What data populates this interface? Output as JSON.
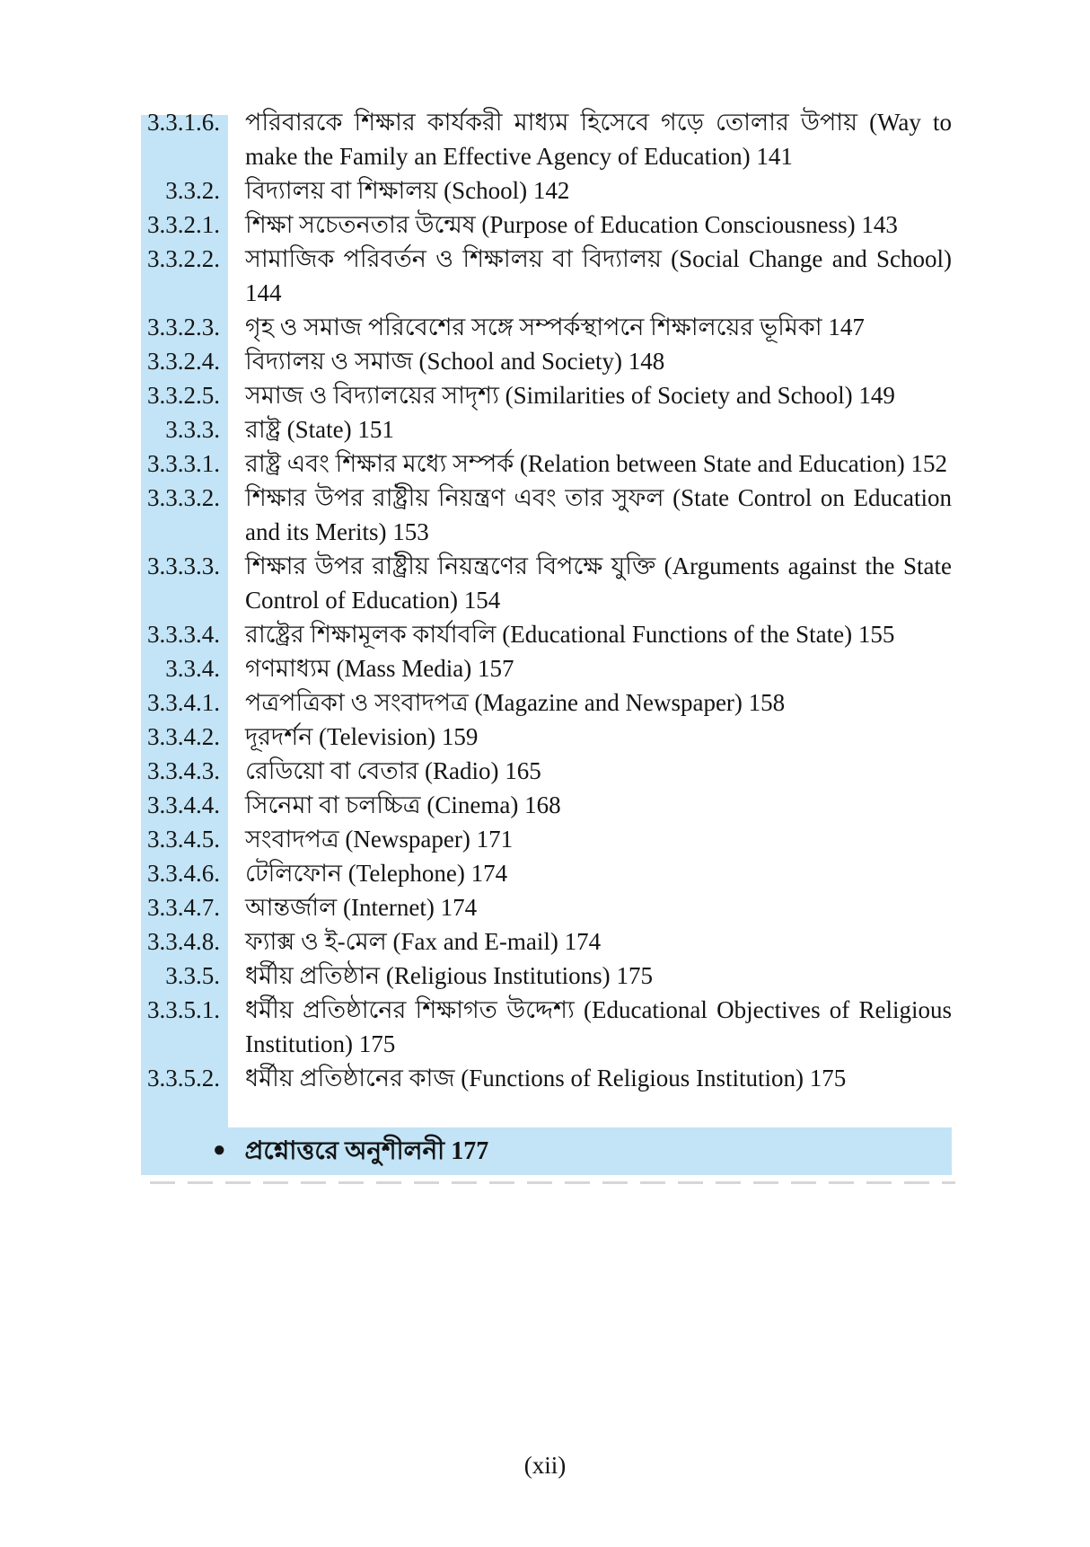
{
  "page": {
    "footer": "(xii)",
    "accent_color": "#c2e4f6",
    "text_color": "#141414"
  },
  "toc": {
    "entries": [
      {
        "number": "3.3.1.6.",
        "text": "পরিবারকে শিক্ষার কার্যকরী মাধ্যম হিসেবে গড়ে তোলার উপায় (Way to make the Family an Effective Agency of Education)",
        "page": "141"
      },
      {
        "number": "3.3.2.",
        "text": "বিদ্যালয় বা শিক্ষালয় (School)",
        "page": "142"
      },
      {
        "number": "3.3.2.1.",
        "text": "শিক্ষা সচেতনতার উন্মেষ (Purpose of Education Consciousness)",
        "page": "143"
      },
      {
        "number": "3.3.2.2.",
        "text": "সামাজিক পরিবর্তন ও শিক্ষালয় বা বিদ্যালয় (Social Change and School)",
        "page": "144"
      },
      {
        "number": "3.3.2.3.",
        "text": "গৃহ ও সমাজ পরিবেশের সঙ্গে সম্পর্কস্থাপনে শিক্ষালয়ের ভূমিকা",
        "page": "147"
      },
      {
        "number": "3.3.2.4.",
        "text": "বিদ্যালয় ও সমাজ (School and Society)",
        "page": "148"
      },
      {
        "number": "3.3.2.5.",
        "text": "সমাজ ও বিদ্যালয়ের সাদৃশ্য (Similarities of Society and School)",
        "page": "149"
      },
      {
        "number": "3.3.3.",
        "text": "রাষ্ট্র (State)",
        "page": "151"
      },
      {
        "number": "3.3.3.1.",
        "text": "রাষ্ট্র এবং শিক্ষার মধ্যে সম্পর্ক (Relation between State and Education)",
        "page": "152"
      },
      {
        "number": "3.3.3.2.",
        "text": "শিক্ষার উপর রাষ্ট্রীয় নিয়ন্ত্রণ এবং তার সুফল (State Control on Education and its Merits)",
        "page": "153"
      },
      {
        "number": "3.3.3.3.",
        "text": "শিক্ষার উপর রাষ্ট্রীয় নিয়ন্ত্রণের বিপক্ষে যুক্তি (Arguments against the State Control of Education)",
        "page": "154"
      },
      {
        "number": "3.3.3.4.",
        "text": "রাষ্ট্রের শিক্ষামূলক কার্যাবলি (Educational Functions of the State)",
        "page": "155"
      },
      {
        "number": "3.3.4.",
        "text": "গণমাধ্যম (Mass Media)",
        "page": "157"
      },
      {
        "number": "3.3.4.1.",
        "text": "পত্রপত্রিকা ও সংবাদপত্র (Magazine and Newspaper)",
        "page": "158"
      },
      {
        "number": "3.3.4.2.",
        "text": "দূরদর্শন (Television)",
        "page": "159"
      },
      {
        "number": "3.3.4.3.",
        "text": "রেডিয়ো বা বেতার (Radio)",
        "page": "165"
      },
      {
        "number": "3.3.4.4.",
        "text": "সিনেমা বা চলচ্চিত্র (Cinema)",
        "page": "168"
      },
      {
        "number": "3.3.4.5.",
        "text": "সংবাদপত্র (Newspaper)",
        "page": "171"
      },
      {
        "number": "3.3.4.6.",
        "text": "টেলিফোন (Telephone)",
        "page": "174"
      },
      {
        "number": "3.3.4.7.",
        "text": "আন্তর্জাল (Internet)",
        "page": "174"
      },
      {
        "number": "3.3.4.8.",
        "text": "ফ্যাক্স ও ই-মেল (Fax and E-mail)",
        "page": "174"
      },
      {
        "number": "3.3.5.",
        "text": "ধর্মীয় প্রতিষ্ঠান (Religious Institutions)",
        "page": "175"
      },
      {
        "number": "3.3.5.1.",
        "text": "ধর্মীয় প্রতিষ্ঠানের শিক্ষাগত উদ্দেশ্য (Educational Objectives of Religious Institution)",
        "page": "175"
      },
      {
        "number": "3.3.5.2.",
        "text": "ধর্মীয় প্রতিষ্ঠানের কাজ (Functions of Religious Institution)",
        "page": "175"
      }
    ],
    "exercise": {
      "bullet": "●",
      "text": "প্রশ্নোত্তরে অনুশীলনী",
      "page": "177"
    }
  }
}
